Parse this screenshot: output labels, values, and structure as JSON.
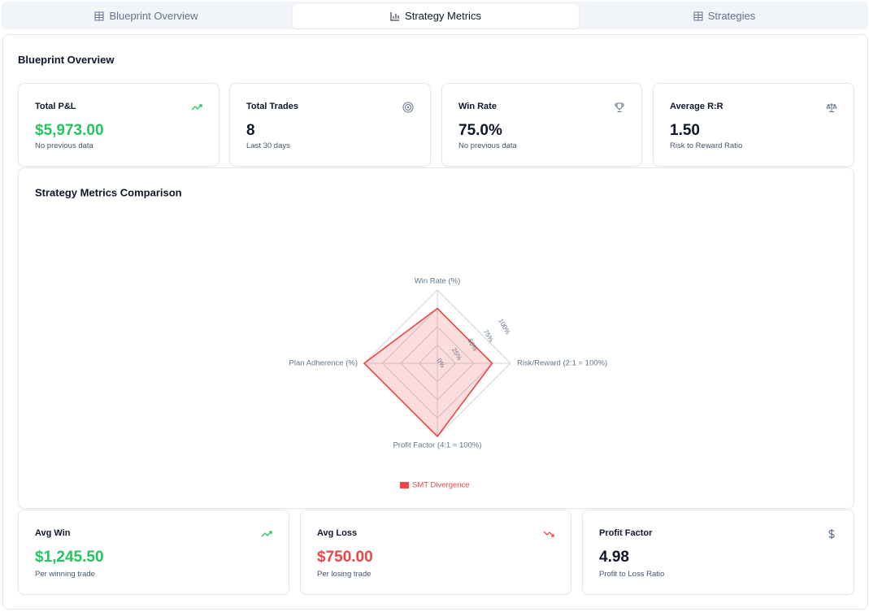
{
  "tabs": [
    "Blueprint Overview",
    "Strategy Metrics",
    "Strategies"
  ],
  "overview_title": "Blueprint Overview",
  "cards": [
    {
      "label": "Total P&L",
      "value": "$5,973.00",
      "note": "No previous data"
    },
    {
      "label": "Total Trades",
      "value": "8",
      "note": "Last 30 days"
    },
    {
      "label": "Win Rate",
      "value": "75.0%",
      "note": "No previous data"
    },
    {
      "label": "Average R:R",
      "value": "1.50",
      "note": "Risk to Reward Ratio"
    }
  ],
  "chart_data": {
    "type": "radar",
    "title": "Strategy Metrics Comparison",
    "categories": [
      "Win Rate (%)",
      "Risk/Reward (2:1 = 100%)",
      "Profit Factor (4:1 = 100%)",
      "Plan Adherence (%)"
    ],
    "series": [
      {
        "name": "SMT Divergence",
        "color": "#ef4444",
        "values": [
          75,
          75,
          100,
          100
        ]
      }
    ],
    "rlim": [
      0,
      100
    ],
    "rticks": [
      {
        "value": 0,
        "label": "0%"
      },
      {
        "value": 25,
        "label": "25%"
      },
      {
        "value": 50,
        "label": "50%"
      },
      {
        "value": 75,
        "label": "75%"
      },
      {
        "value": 100,
        "label": "100%"
      }
    ]
  },
  "bottom_cards": [
    {
      "label": "Avg Win",
      "value": "$1,245.50",
      "note": "Per winning trade"
    },
    {
      "label": "Avg Loss",
      "value": "$750.00",
      "note": "Per losing trade"
    },
    {
      "label": "Profit Factor",
      "value": "4.98",
      "note": "Profit to Loss Ratio"
    }
  ]
}
